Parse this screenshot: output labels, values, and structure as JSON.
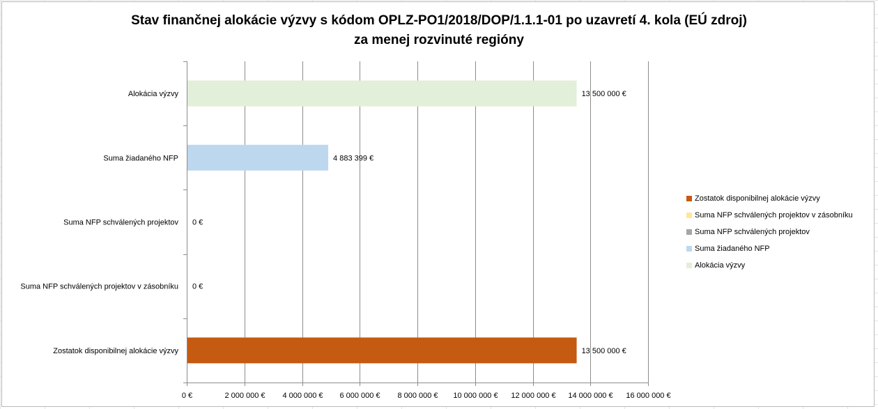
{
  "chart_data": {
    "type": "bar",
    "orientation": "horizontal",
    "title_line1": "Stav finančnej alokácie výzvy s kódom OPLZ-PO1/2018/DOP/1.1.1-01 po uzavretí 4. kola (EÚ zdroj)",
    "title_line2": "za menej rozvinuté regióny",
    "categories": [
      "Alokácia výzvy",
      "Suma žiadaného NFP",
      "Suma NFP schválených projektov",
      "Suma NFP schválených projektov v zásobníku",
      "Zostatok disponibilnej alokácie výzvy"
    ],
    "values": [
      13500000,
      4883399,
      0,
      0,
      13500000
    ],
    "value_labels": [
      "13 500 000 €",
      "4 883 399 €",
      "0 €",
      "0 €",
      "13 500 000 €"
    ],
    "colors": [
      "#e2efd9",
      "#bdd7ee",
      "#a5a5a5",
      "#ffe699",
      "#c55a11"
    ],
    "xlim": [
      0,
      16000000
    ],
    "xticks": [
      0,
      2000000,
      4000000,
      6000000,
      8000000,
      10000000,
      12000000,
      14000000,
      16000000
    ],
    "xtick_labels": [
      "0 €",
      "2 000 000 €",
      "4 000 000 €",
      "6 000 000 €",
      "8 000 000 €",
      "10 000 000 €",
      "12 000 000 €",
      "14 000 000 €",
      "16 000 000 €"
    ],
    "grid": true,
    "legend_position": "right",
    "legend": [
      {
        "label": "Zostatok disponibilnej alokácie výzvy",
        "color": "#c55a11"
      },
      {
        "label": "Suma NFP schválených projektov v zásobníku",
        "color": "#ffe699"
      },
      {
        "label": "Suma NFP schválených projektov",
        "color": "#a5a5a5"
      },
      {
        "label": "Suma žiadaného NFP",
        "color": "#bdd7ee"
      },
      {
        "label": "Alokácia výzvy",
        "color": "#e2efd9"
      }
    ]
  }
}
